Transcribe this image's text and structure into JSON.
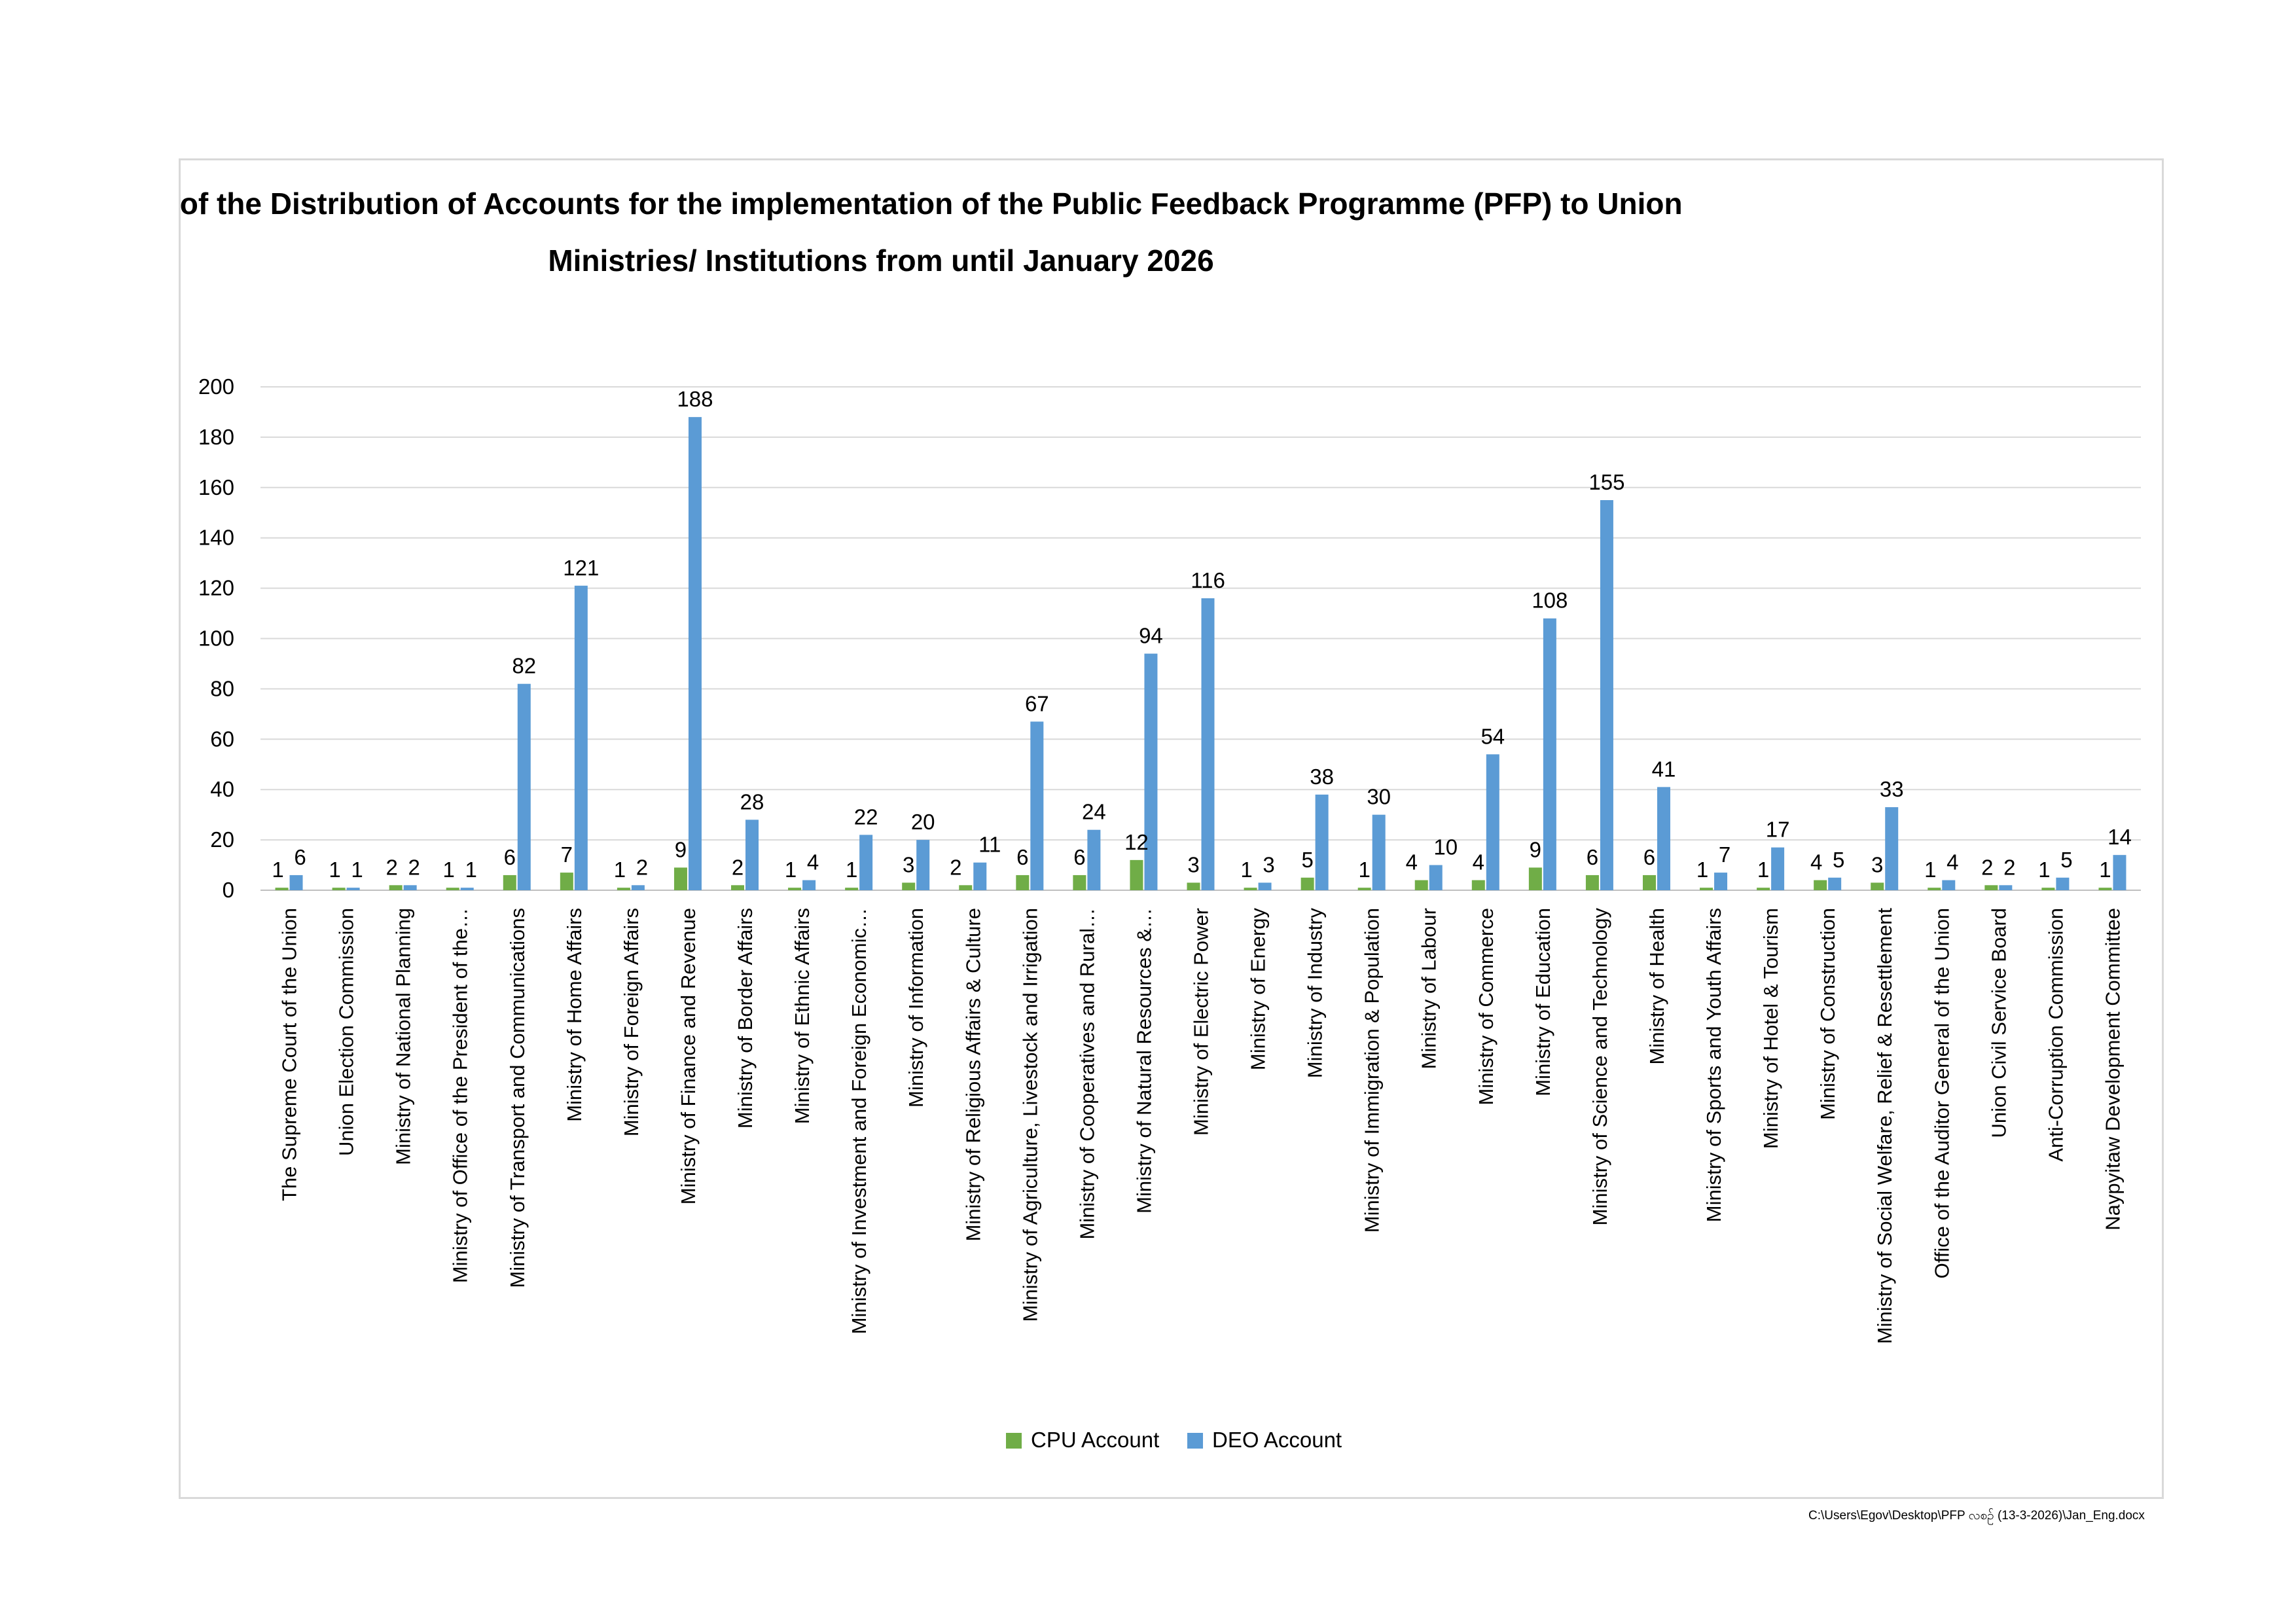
{
  "chart_data": {
    "type": "bar",
    "title_lines": [
      "Status of the Distribution of Accounts for the implementation of the Public Feedback Programme (PFP) to Union",
      "Ministries/ Institutions from until  January 2026"
    ],
    "ylim": [
      0,
      200
    ],
    "yticks": [
      0,
      20,
      40,
      60,
      80,
      100,
      120,
      140,
      160,
      180,
      200
    ],
    "grid": true,
    "legend_position": "bottom-center",
    "categories": [
      "The Supreme Court of the Union",
      "Union Election Commission",
      "Ministry of National Planning",
      "Ministry of Office of the President of the…",
      "Ministry of Transport and Communications",
      "Ministry of Home Affairs",
      "Ministry of Foreign Affairs",
      "Ministry of Finance and Revenue",
      "Ministry of Border Affairs",
      "Ministry of Ethnic Affairs",
      "Ministry of Investment and Foreign Economic…",
      "Ministry of Information",
      "Ministry of Religious Affairs & Culture",
      "Ministry of Agriculture, Livestock and Irrigation",
      "Ministry of Cooperatives and Rural…",
      "Ministry of Natural Resources &…",
      "Ministry of Electric Power",
      "Ministry of Energy",
      "Ministry of Industry",
      "Ministry of Immigration & Population",
      "Ministry of Labour",
      "Ministry of Commerce",
      "Ministry of Education",
      "Ministry of Science and Technology",
      "Ministry of Health",
      "Ministry of Sports and Youth Affairs",
      "Ministry of Hotel & Tourism",
      "Ministry of Construction",
      "Ministry of Social Welfare, Relief & Resettlement",
      "Office of the Auditor General of the Union",
      "Union Civil Service Board",
      "Anti-Corruption Commission",
      "Naypyitaw Development Committee"
    ],
    "series": [
      {
        "name": "CPU Account",
        "color": "#70ad47",
        "values": [
          1,
          1,
          2,
          1,
          6,
          7,
          1,
          9,
          2,
          1,
          1,
          3,
          2,
          6,
          6,
          12,
          3,
          1,
          5,
          1,
          4,
          4,
          9,
          6,
          6,
          1,
          1,
          4,
          3,
          1,
          2,
          1,
          1
        ]
      },
      {
        "name": "DEO Account",
        "color": "#5b9bd5",
        "values": [
          6,
          1,
          2,
          1,
          82,
          121,
          2,
          188,
          28,
          4,
          22,
          20,
          11,
          67,
          24,
          94,
          116,
          3,
          38,
          30,
          10,
          54,
          108,
          155,
          41,
          7,
          17,
          5,
          33,
          4,
          2,
          5,
          14
        ]
      }
    ]
  },
  "footer": {
    "path": "C:\\Users\\Egov\\Desktop\\PFP လစဉ် (13-3-2026)\\Jan_Eng.docx"
  }
}
